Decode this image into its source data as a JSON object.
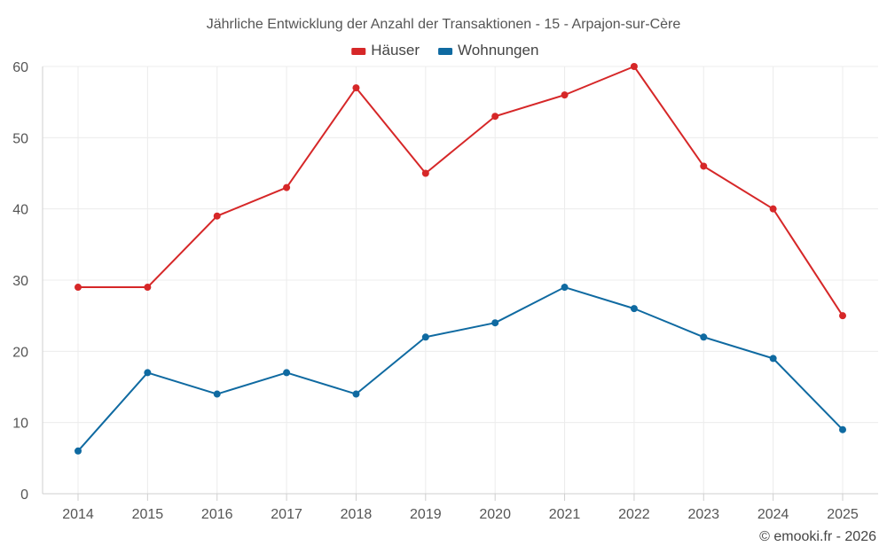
{
  "chart_data": {
    "type": "line",
    "title": "Jährliche Entwicklung der Anzahl der Transaktionen - 15 - Arpajon-sur-Cère",
    "xlabel": "",
    "ylabel": "",
    "categories": [
      "2014",
      "2015",
      "2016",
      "2017",
      "2018",
      "2019",
      "2020",
      "2021",
      "2022",
      "2023",
      "2024",
      "2025"
    ],
    "ylim": [
      0,
      60
    ],
    "yticks": [
      0,
      10,
      20,
      30,
      40,
      50,
      60
    ],
    "grid": true,
    "legend_position": "top-center",
    "series": [
      {
        "name": "Häuser",
        "color": "#d62728",
        "values": [
          29,
          29,
          39,
          43,
          57,
          45,
          53,
          56,
          60,
          46,
          40,
          25
        ]
      },
      {
        "name": "Wohnungen",
        "color": "#0f6aa1",
        "values": [
          6,
          17,
          14,
          17,
          14,
          22,
          24,
          29,
          26,
          22,
          19,
          9
        ]
      }
    ]
  },
  "footer": {
    "credit": "© emooki.fr - 2026"
  }
}
